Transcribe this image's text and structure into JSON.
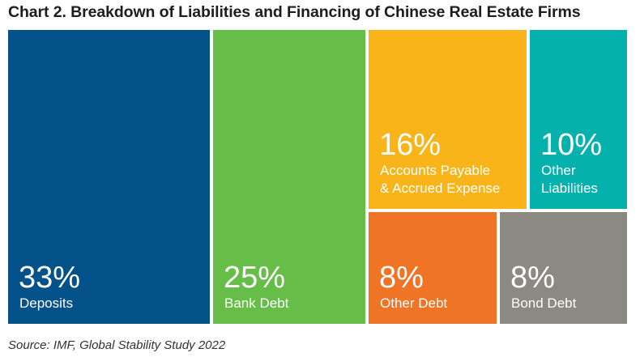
{
  "chart_data": {
    "type": "treemap",
    "title": "Chart 2. Breakdown of Liabilities and Financing of Chinese Real Estate Firms",
    "unit": "%",
    "segments": [
      {
        "label": "Deposits",
        "value": 33,
        "value_label": "33%",
        "color": "#05518a"
      },
      {
        "label": "Bank Debt",
        "value": 25,
        "value_label": "25%",
        "color": "#66bd48"
      },
      {
        "label": "Accounts Payable\n& Accrued Expense",
        "value": 16,
        "value_label": "16%",
        "color": "#f9b41a"
      },
      {
        "label": "Other\nLiabilities",
        "value": 10,
        "value_label": "10%",
        "color": "#05b1ad"
      },
      {
        "label": "Other Debt",
        "value": 8,
        "value_label": "8%",
        "color": "#ef7425"
      },
      {
        "label": "Bond Debt",
        "value": 8,
        "value_label": "8%",
        "color": "#8a8a82"
      }
    ],
    "source": "Source: IMF, Global Stability Study 2022"
  }
}
